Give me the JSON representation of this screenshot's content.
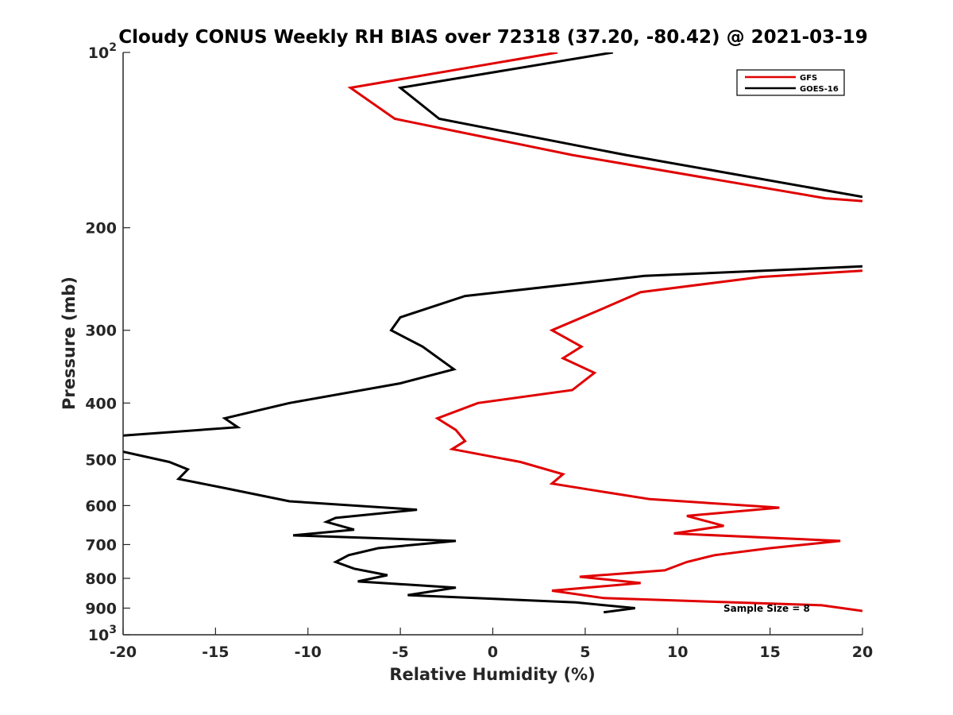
{
  "chart_data": {
    "type": "line",
    "title": "Cloudy CONUS Weekly RH BIAS over 72318 (37.20, -80.42) @ 2021-03-19",
    "xlabel": "Relative Humidity (%)",
    "ylabel": "Pressure (mb)",
    "xlim": [
      -20,
      20
    ],
    "ylim": [
      100,
      1000
    ],
    "y_scale": "log",
    "y_reversed": true,
    "x_ticks": [
      "-20",
      "-15",
      "-10",
      "-5",
      "0",
      "5",
      "10",
      "15",
      "20"
    ],
    "y_ticks": [
      {
        "value": 100,
        "base": "10",
        "exp": "2"
      },
      {
        "value": 200,
        "label": "200"
      },
      {
        "value": 300,
        "label": "300"
      },
      {
        "value": 400,
        "label": "400"
      },
      {
        "value": 500,
        "label": "500"
      },
      {
        "value": 600,
        "label": "600"
      },
      {
        "value": 700,
        "label": "700"
      },
      {
        "value": 800,
        "label": "800"
      },
      {
        "value": 900,
        "label": "900"
      },
      {
        "value": 1000,
        "base": "10",
        "exp": "3"
      }
    ],
    "grid": false,
    "legend_position": "top-right",
    "annotation": "Sample Size = 8",
    "series": [
      {
        "name": "GFS",
        "color": "#e00000",
        "points": [
          [
            3.5,
            100
          ],
          [
            -7.7,
            115
          ],
          [
            -5.3,
            130
          ],
          [
            4.3,
            150
          ],
          [
            18.0,
            178
          ],
          [
            20.0,
            180
          ],
          [
            null,
            null
          ],
          [
            20.0,
            237
          ],
          [
            14.5,
            243
          ],
          [
            8.0,
            258
          ],
          [
            6.0,
            275
          ],
          [
            3.2,
            300
          ],
          [
            4.8,
            320
          ],
          [
            3.8,
            335
          ],
          [
            5.5,
            355
          ],
          [
            4.3,
            380
          ],
          [
            -0.8,
            400
          ],
          [
            -3.0,
            425
          ],
          [
            -2.0,
            445
          ],
          [
            -1.5,
            465
          ],
          [
            -2.2,
            480
          ],
          [
            1.5,
            505
          ],
          [
            3.8,
            530
          ],
          [
            3.2,
            550
          ],
          [
            5.5,
            565
          ],
          [
            8.5,
            585
          ],
          [
            15.5,
            605
          ],
          [
            10.5,
            625
          ],
          [
            12.5,
            650
          ],
          [
            9.8,
            670
          ],
          [
            18.8,
            690
          ],
          [
            15.0,
            710
          ],
          [
            12.0,
            730
          ],
          [
            10.5,
            750
          ],
          [
            9.3,
            775
          ],
          [
            4.7,
            795
          ],
          [
            8.0,
            815
          ],
          [
            3.2,
            840
          ],
          [
            6.0,
            865
          ],
          [
            17.8,
            890
          ],
          [
            20.0,
            910
          ]
        ]
      },
      {
        "name": "GOES-16",
        "color": "#000000",
        "points": [
          [
            6.5,
            100
          ],
          [
            -5.0,
            115
          ],
          [
            -2.9,
            130
          ],
          [
            7.2,
            150
          ],
          [
            20.0,
            177
          ],
          [
            null,
            null
          ],
          [
            20.0,
            233
          ],
          [
            8.2,
            242
          ],
          [
            -1.5,
            262
          ],
          [
            -5.0,
            285
          ],
          [
            -5.5,
            300
          ],
          [
            -3.8,
            320
          ],
          [
            -2.1,
            350
          ],
          [
            -5.0,
            370
          ],
          [
            -11.0,
            400
          ],
          [
            -14.5,
            425
          ],
          [
            -13.8,
            440
          ],
          [
            -20.0,
            455
          ],
          [
            null,
            null
          ],
          [
            -20.0,
            485
          ],
          [
            -17.5,
            505
          ],
          [
            -16.5,
            520
          ],
          [
            -17.0,
            540
          ],
          [
            -14.5,
            560
          ],
          [
            -11.0,
            590
          ],
          [
            -4.1,
            610
          ],
          [
            -8.5,
            630
          ],
          [
            -9.0,
            640
          ],
          [
            -7.5,
            660
          ],
          [
            -10.8,
            675
          ],
          [
            -2.0,
            690
          ],
          [
            -6.2,
            710
          ],
          [
            -7.8,
            730
          ],
          [
            -8.5,
            750
          ],
          [
            -7.5,
            770
          ],
          [
            -5.7,
            790
          ],
          [
            -7.3,
            810
          ],
          [
            -2.0,
            830
          ],
          [
            -4.6,
            855
          ],
          [
            4.5,
            880
          ],
          [
            7.7,
            900
          ],
          [
            6.0,
            915
          ]
        ]
      }
    ]
  }
}
